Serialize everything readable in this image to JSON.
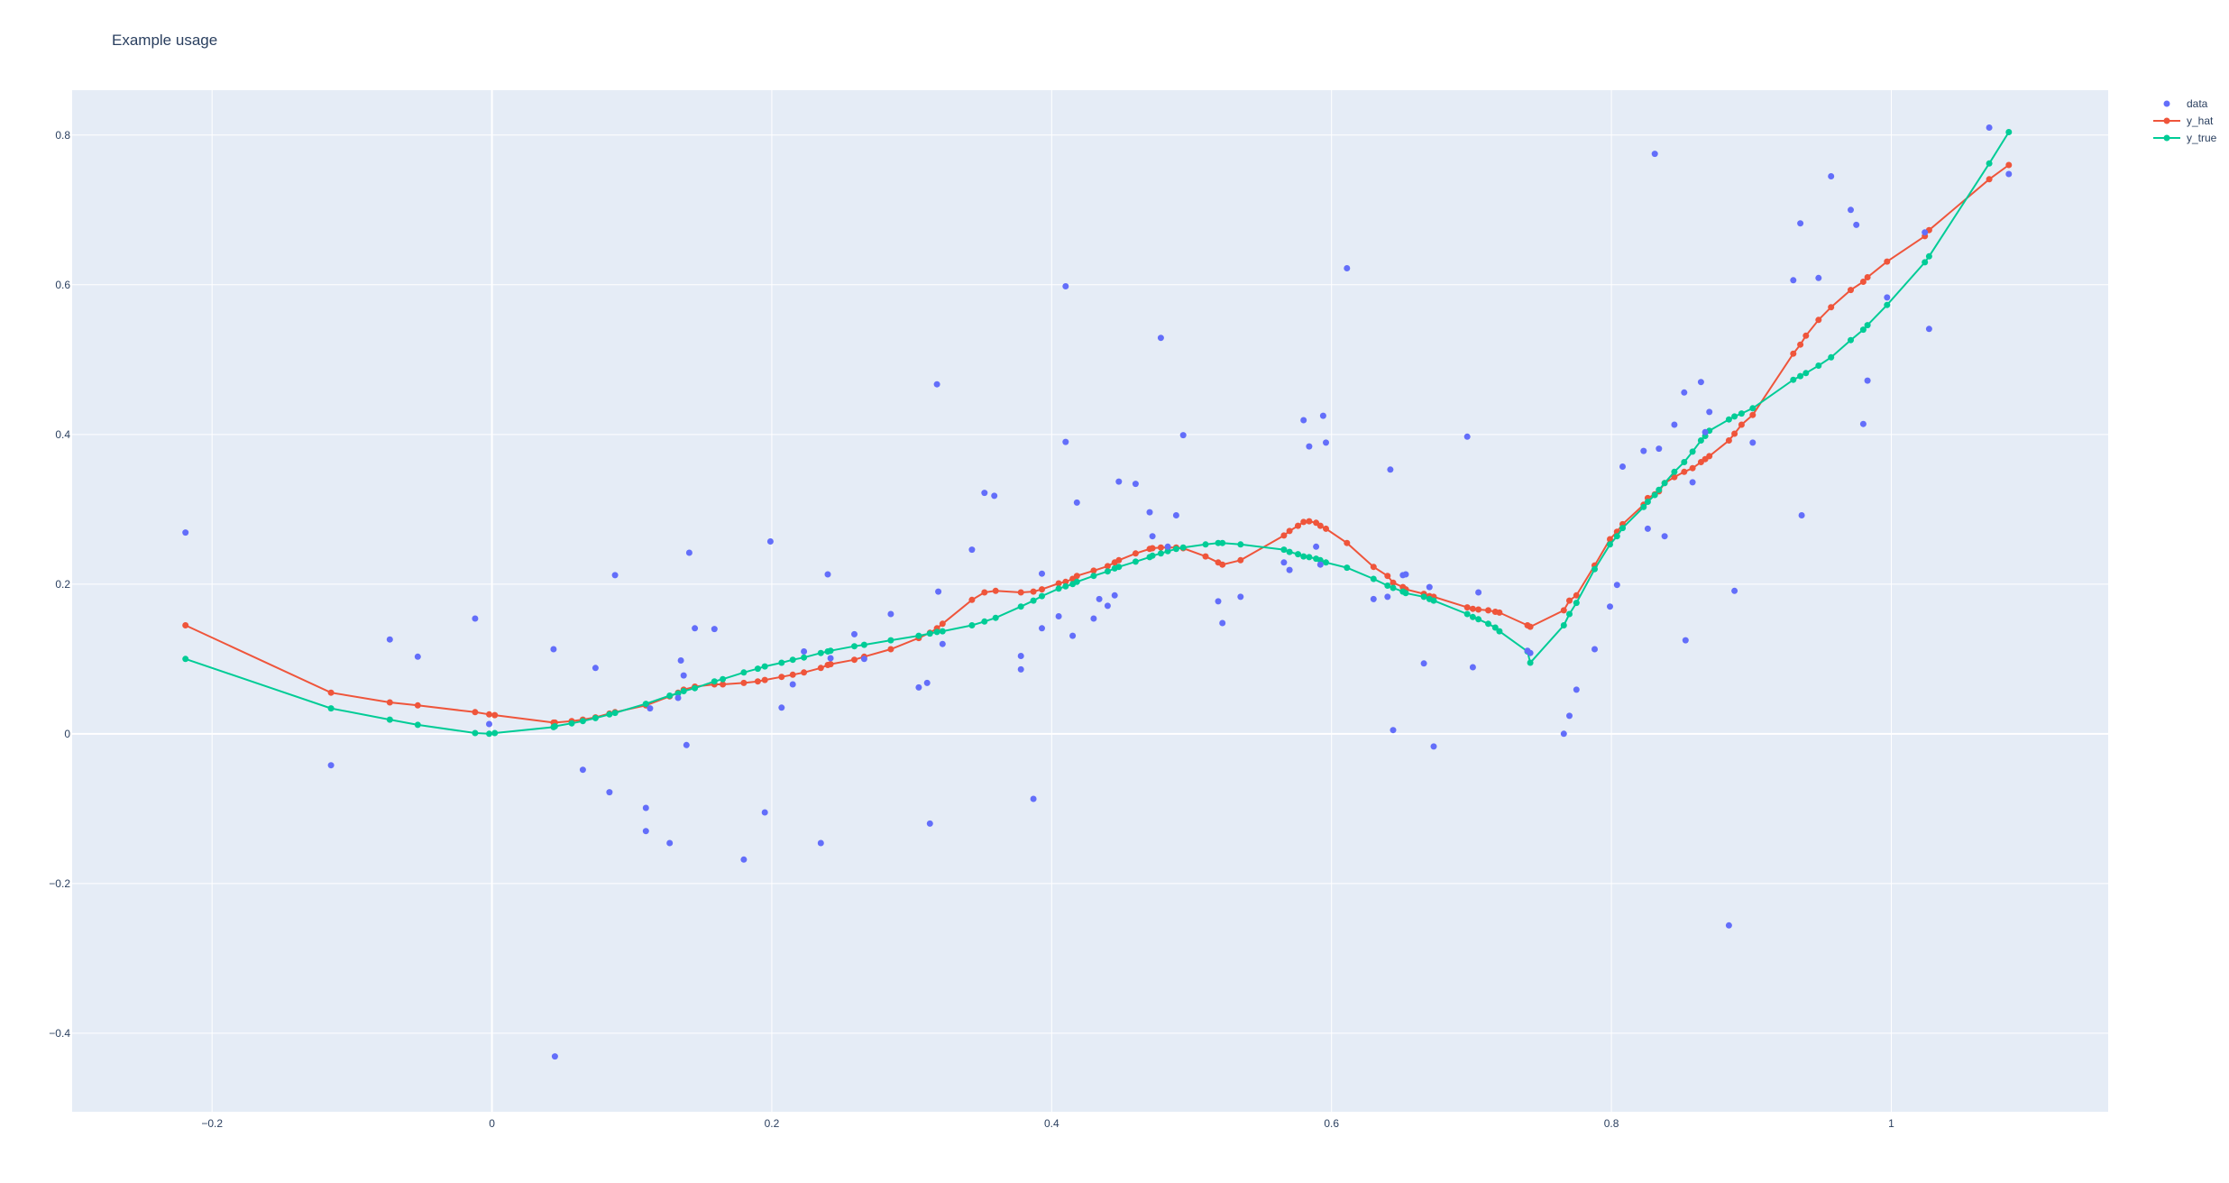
{
  "chart_data": {
    "type": "scatter",
    "title": "Example usage",
    "xlabel": "",
    "ylabel": "",
    "xlim": [
      -0.3,
      1.155
    ],
    "ylim": [
      -0.505,
      0.86
    ],
    "x_ticks": [
      -0.2,
      0,
      0.2,
      0.4,
      0.6,
      0.8,
      1
    ],
    "x_tick_labels": [
      "−0.2",
      "0",
      "0.2",
      "0.4",
      "0.6",
      "0.8",
      "1"
    ],
    "y_ticks": [
      -0.4,
      -0.2,
      0,
      0.2,
      0.4,
      0.6,
      0.8
    ],
    "y_tick_labels": [
      "−0.4",
      "−0.2",
      "0",
      "0.2",
      "0.4",
      "0.6",
      "0.8"
    ],
    "grid": true,
    "legend_position": "top-right",
    "colors": {
      "background": "#E5ECF6",
      "grid": "#ffffff",
      "data": "#636EFA",
      "y_hat": "#EF553B",
      "y_true": "#00CC96"
    },
    "series": [
      {
        "name": "data",
        "mode": "markers",
        "x": [
          -0.219,
          -0.115,
          -0.073,
          -0.053,
          -0.012,
          -0.002,
          0.045,
          0.044,
          0.065,
          0.074,
          0.084,
          0.088,
          0.11,
          0.11,
          0.113,
          0.127,
          0.133,
          0.135,
          0.137,
          0.139,
          0.141,
          0.145,
          0.159,
          0.18,
          0.195,
          0.199,
          0.207,
          0.215,
          0.223,
          0.235,
          0.24,
          0.242,
          0.259,
          0.266,
          0.285,
          0.305,
          0.311,
          0.313,
          0.318,
          0.319,
          0.322,
          0.343,
          0.352,
          0.359,
          0.378,
          0.378,
          0.387,
          0.393,
          0.393,
          0.405,
          0.41,
          0.41,
          0.415,
          0.418,
          0.43,
          0.434,
          0.44,
          0.445,
          0.448,
          0.46,
          0.47,
          0.472,
          0.478,
          0.483,
          0.489,
          0.494,
          0.519,
          0.522,
          0.535,
          0.566,
          0.57,
          0.58,
          0.584,
          0.589,
          0.592,
          0.594,
          0.596,
          0.611,
          0.63,
          0.64,
          0.642,
          0.644,
          0.651,
          0.653,
          0.666,
          0.67,
          0.673,
          0.697,
          0.701,
          0.705,
          0.74,
          0.742,
          0.766,
          0.77,
          0.775,
          0.788,
          0.799,
          0.804,
          0.808,
          0.823,
          0.826,
          0.831,
          0.834,
          0.838,
          0.845,
          0.852,
          0.853,
          0.858,
          0.864,
          0.867,
          0.87,
          0.884,
          0.888,
          0.901,
          0.93,
          0.935,
          0.936,
          0.948,
          0.957,
          0.971,
          0.975,
          0.98,
          0.997,
          1.024,
          1.027,
          1.07,
          1.084,
          0.983
        ],
        "y": [
          0.269,
          -0.042,
          0.126,
          0.103,
          0.154,
          0.013,
          -0.431,
          0.113,
          -0.048,
          0.088,
          -0.078,
          0.212,
          -0.099,
          -0.13,
          0.034,
          -0.146,
          0.048,
          0.098,
          0.078,
          -0.015,
          0.242,
          0.141,
          0.14,
          -0.168,
          -0.105,
          0.257,
          0.035,
          0.066,
          0.11,
          -0.146,
          0.213,
          0.101,
          0.133,
          0.1,
          0.16,
          0.062,
          0.068,
          -0.12,
          0.467,
          0.19,
          0.12,
          0.246,
          0.322,
          0.318,
          0.086,
          0.104,
          -0.087,
          0.141,
          0.214,
          0.157,
          0.598,
          0.39,
          0.131,
          0.309,
          0.154,
          0.18,
          0.171,
          0.185,
          0.337,
          0.334,
          0.296,
          0.264,
          0.529,
          0.25,
          0.292,
          0.399,
          0.177,
          0.148,
          0.183,
          0.229,
          0.219,
          0.419,
          0.384,
          0.25,
          0.226,
          0.425,
          0.389,
          0.622,
          0.18,
          0.183,
          0.353,
          0.005,
          0.212,
          0.213,
          0.094,
          0.196,
          -0.017,
          0.397,
          0.089,
          0.189,
          0.111,
          0.108,
          0.0,
          0.024,
          0.059,
          0.113,
          0.17,
          0.199,
          0.357,
          0.378,
          0.274,
          0.775,
          0.381,
          0.264,
          0.413,
          0.456,
          0.125,
          0.336,
          0.47,
          0.403,
          0.43,
          -0.256,
          0.191,
          0.389,
          0.606,
          0.682,
          0.292,
          0.609,
          0.745,
          0.7,
          0.68,
          0.414,
          0.583,
          0.67,
          0.541,
          0.81,
          0.748,
          0.472
        ]
      },
      {
        "name": "y_hat",
        "mode": "lines+markers",
        "x": [
          -0.219,
          -0.115,
          -0.073,
          -0.053,
          -0.012,
          -0.002,
          0.002,
          0.044,
          0.045,
          0.057,
          0.065,
          0.074,
          0.084,
          0.088,
          0.11,
          0.127,
          0.133,
          0.137,
          0.145,
          0.159,
          0.165,
          0.18,
          0.19,
          0.195,
          0.207,
          0.215,
          0.223,
          0.235,
          0.24,
          0.242,
          0.259,
          0.266,
          0.285,
          0.305,
          0.313,
          0.318,
          0.322,
          0.343,
          0.352,
          0.36,
          0.378,
          0.387,
          0.393,
          0.405,
          0.41,
          0.415,
          0.418,
          0.43,
          0.44,
          0.445,
          0.448,
          0.46,
          0.47,
          0.472,
          0.478,
          0.483,
          0.489,
          0.494,
          0.51,
          0.519,
          0.522,
          0.535,
          0.566,
          0.57,
          0.576,
          0.58,
          0.584,
          0.589,
          0.592,
          0.596,
          0.611,
          0.63,
          0.64,
          0.644,
          0.651,
          0.653,
          0.666,
          0.67,
          0.673,
          0.697,
          0.701,
          0.705,
          0.712,
          0.717,
          0.72,
          0.74,
          0.742,
          0.766,
          0.77,
          0.775,
          0.788,
          0.799,
          0.804,
          0.808,
          0.823,
          0.826,
          0.831,
          0.834,
          0.838,
          0.845,
          0.852,
          0.858,
          0.864,
          0.867,
          0.87,
          0.884,
          0.888,
          0.893,
          0.901,
          0.93,
          0.935,
          0.939,
          0.948,
          0.957,
          0.971,
          0.98,
          0.983,
          0.997,
          1.024,
          1.027,
          1.07,
          1.084
        ],
        "y": [
          0.145,
          0.055,
          0.042,
          0.038,
          0.029,
          0.026,
          0.025,
          0.015,
          0.015,
          0.017,
          0.019,
          0.022,
          0.027,
          0.029,
          0.038,
          0.05,
          0.055,
          0.059,
          0.063,
          0.066,
          0.066,
          0.068,
          0.07,
          0.072,
          0.076,
          0.079,
          0.082,
          0.088,
          0.092,
          0.093,
          0.099,
          0.103,
          0.113,
          0.128,
          0.135,
          0.141,
          0.147,
          0.179,
          0.189,
          0.191,
          0.189,
          0.19,
          0.193,
          0.201,
          0.203,
          0.207,
          0.211,
          0.218,
          0.224,
          0.229,
          0.232,
          0.241,
          0.247,
          0.248,
          0.249,
          0.249,
          0.249,
          0.248,
          0.237,
          0.229,
          0.226,
          0.232,
          0.265,
          0.271,
          0.278,
          0.283,
          0.284,
          0.282,
          0.278,
          0.274,
          0.255,
          0.223,
          0.211,
          0.202,
          0.196,
          0.193,
          0.187,
          0.184,
          0.183,
          0.169,
          0.167,
          0.166,
          0.165,
          0.163,
          0.162,
          0.145,
          0.143,
          0.165,
          0.178,
          0.185,
          0.225,
          0.26,
          0.27,
          0.28,
          0.306,
          0.315,
          0.32,
          0.324,
          0.335,
          0.343,
          0.35,
          0.355,
          0.363,
          0.367,
          0.371,
          0.392,
          0.401,
          0.413,
          0.426,
          0.508,
          0.52,
          0.532,
          0.553,
          0.57,
          0.593,
          0.604,
          0.61,
          0.631,
          0.665,
          0.673,
          0.741,
          0.76
        ]
      },
      {
        "name": "y_true",
        "mode": "lines+markers",
        "x": [
          -0.219,
          -0.115,
          -0.073,
          -0.053,
          -0.012,
          -0.002,
          0.002,
          0.044,
          0.045,
          0.057,
          0.065,
          0.074,
          0.084,
          0.088,
          0.11,
          0.127,
          0.133,
          0.137,
          0.145,
          0.159,
          0.165,
          0.18,
          0.19,
          0.195,
          0.207,
          0.215,
          0.223,
          0.235,
          0.24,
          0.242,
          0.259,
          0.266,
          0.285,
          0.305,
          0.313,
          0.318,
          0.322,
          0.343,
          0.352,
          0.36,
          0.378,
          0.387,
          0.393,
          0.405,
          0.41,
          0.415,
          0.418,
          0.43,
          0.44,
          0.445,
          0.448,
          0.46,
          0.47,
          0.472,
          0.478,
          0.483,
          0.489,
          0.494,
          0.51,
          0.519,
          0.522,
          0.535,
          0.566,
          0.57,
          0.576,
          0.58,
          0.584,
          0.589,
          0.592,
          0.596,
          0.611,
          0.63,
          0.64,
          0.644,
          0.651,
          0.653,
          0.666,
          0.67,
          0.673,
          0.697,
          0.701,
          0.705,
          0.712,
          0.717,
          0.72,
          0.74,
          0.742,
          0.766,
          0.77,
          0.775,
          0.788,
          0.799,
          0.804,
          0.808,
          0.823,
          0.826,
          0.831,
          0.834,
          0.838,
          0.845,
          0.852,
          0.858,
          0.864,
          0.867,
          0.87,
          0.884,
          0.888,
          0.893,
          0.901,
          0.93,
          0.935,
          0.939,
          0.948,
          0.957,
          0.971,
          0.98,
          0.983,
          0.997,
          1.024,
          1.027,
          1.07,
          1.084
        ],
        "y": [
          0.1,
          0.034,
          0.019,
          0.012,
          0.001,
          0.0,
          0.001,
          0.009,
          0.01,
          0.014,
          0.017,
          0.021,
          0.026,
          0.028,
          0.04,
          0.051,
          0.054,
          0.057,
          0.061,
          0.07,
          0.073,
          0.082,
          0.087,
          0.09,
          0.095,
          0.099,
          0.102,
          0.108,
          0.11,
          0.111,
          0.117,
          0.119,
          0.125,
          0.131,
          0.134,
          0.136,
          0.137,
          0.145,
          0.15,
          0.155,
          0.17,
          0.178,
          0.184,
          0.194,
          0.197,
          0.2,
          0.203,
          0.211,
          0.217,
          0.221,
          0.223,
          0.23,
          0.236,
          0.238,
          0.241,
          0.244,
          0.247,
          0.249,
          0.253,
          0.255,
          0.255,
          0.253,
          0.246,
          0.243,
          0.24,
          0.237,
          0.236,
          0.234,
          0.232,
          0.229,
          0.222,
          0.207,
          0.198,
          0.195,
          0.19,
          0.188,
          0.183,
          0.18,
          0.178,
          0.16,
          0.156,
          0.153,
          0.147,
          0.142,
          0.137,
          0.11,
          0.095,
          0.145,
          0.16,
          0.175,
          0.22,
          0.253,
          0.264,
          0.275,
          0.303,
          0.31,
          0.319,
          0.326,
          0.335,
          0.35,
          0.363,
          0.377,
          0.392,
          0.398,
          0.405,
          0.42,
          0.424,
          0.428,
          0.435,
          0.473,
          0.478,
          0.482,
          0.492,
          0.503,
          0.526,
          0.54,
          0.546,
          0.573,
          0.63,
          0.638,
          0.762,
          0.804
        ]
      }
    ]
  }
}
